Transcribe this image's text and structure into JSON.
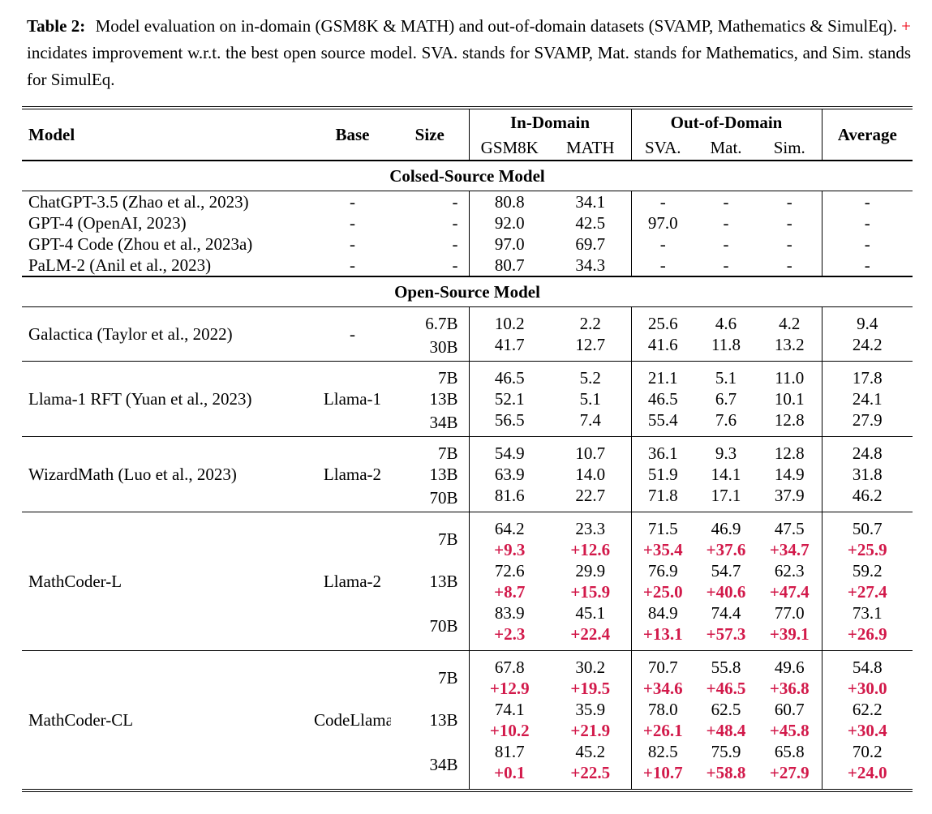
{
  "caption": {
    "label": "Table 2:",
    "before_plus": "Model evaluation on in-domain (GSM8K & MATH) and out-of-domain datasets (SVAMP, Mathematics & SimulEq).",
    "plus": "+",
    "after_plus": "incidates improvement w.r.t. the best open source model. SVA. stands for SVAMP, Mat. stands for Mathematics, and Sim. stands for SimulEq."
  },
  "colors": {
    "delta_red": "#d2194a",
    "caption_plus_red": "#ee0011"
  },
  "table": {
    "header": {
      "model": "Model",
      "base": "Base",
      "size": "Size",
      "in_domain": "In-Domain",
      "out_of_domain": "Out-of-Domain",
      "gsm8k": "GSM8K",
      "math": "MATH",
      "sva": "SVA.",
      "mat": "Mat.",
      "sim": "Sim.",
      "average": "Average"
    },
    "sections": [
      {
        "title": "Colsed-Source Model",
        "group_dividers": false,
        "pad_groups": false,
        "groups": [
          {
            "model": "ChatGPT-3.5 (Zhao et al., 2023)",
            "base": "-",
            "rows": [
              {
                "size": "-",
                "values": [
                  "80.8",
                  "34.1",
                  "-",
                  "-",
                  "-",
                  "-"
                ]
              }
            ]
          },
          {
            "model": "GPT-4 (OpenAI, 2023)",
            "base": "-",
            "rows": [
              {
                "size": "-",
                "values": [
                  "92.0",
                  "42.5",
                  "97.0",
                  "-",
                  "-",
                  "-"
                ]
              }
            ]
          },
          {
            "model": "GPT-4 Code (Zhou et al., 2023a)",
            "base": "-",
            "rows": [
              {
                "size": "-",
                "values": [
                  "97.0",
                  "69.7",
                  "-",
                  "-",
                  "-",
                  "-"
                ]
              }
            ]
          },
          {
            "model": "PaLM-2 (Anil et al., 2023)",
            "base": "-",
            "rows": [
              {
                "size": "-",
                "values": [
                  "80.7",
                  "34.3",
                  "-",
                  "-",
                  "-",
                  "-"
                ]
              }
            ]
          }
        ]
      },
      {
        "title": "Open-Source Model",
        "group_dividers": true,
        "pad_groups": true,
        "groups": [
          {
            "model": "Galactica (Taylor et al., 2022)",
            "base": "-",
            "rows": [
              {
                "size": "6.7B",
                "values": [
                  "10.2",
                  "2.2",
                  "25.6",
                  "4.6",
                  "4.2",
                  "9.4"
                ]
              },
              {
                "size": "30B",
                "values": [
                  "41.7",
                  "12.7",
                  "41.6",
                  "11.8",
                  "13.2",
                  "24.2"
                ]
              }
            ]
          },
          {
            "model": "Llama-1 RFT (Yuan et al., 2023)",
            "base": "Llama-1",
            "rows": [
              {
                "size": "7B",
                "values": [
                  "46.5",
                  "5.2",
                  "21.1",
                  "5.1",
                  "11.0",
                  "17.8"
                ]
              },
              {
                "size": "13B",
                "values": [
                  "52.1",
                  "5.1",
                  "46.5",
                  "6.7",
                  "10.1",
                  "24.1"
                ]
              },
              {
                "size": "34B",
                "values": [
                  "56.5",
                  "7.4",
                  "55.4",
                  "7.6",
                  "12.8",
                  "27.9"
                ]
              }
            ]
          },
          {
            "model": "WizardMath (Luo et al., 2023)",
            "base": "Llama-2",
            "rows": [
              {
                "size": "7B",
                "values": [
                  "54.9",
                  "10.7",
                  "36.1",
                  "9.3",
                  "12.8",
                  "24.8"
                ]
              },
              {
                "size": "13B",
                "values": [
                  "63.9",
                  "14.0",
                  "51.9",
                  "14.1",
                  "14.9",
                  "31.8"
                ]
              },
              {
                "size": "70B",
                "values": [
                  "81.6",
                  "22.7",
                  "71.8",
                  "17.1",
                  "37.9",
                  "46.2"
                ]
              }
            ]
          },
          {
            "model": "MathCoder-L",
            "base": "Llama-2",
            "rows": [
              {
                "size": "7B",
                "values": [
                  "64.2",
                  "23.3",
                  "71.5",
                  "46.9",
                  "47.5",
                  "50.7"
                ],
                "delta": [
                  "+9.3",
                  "+12.6",
                  "+35.4",
                  "+37.6",
                  "+34.7",
                  "+25.9"
                ]
              },
              {
                "size": "13B",
                "values": [
                  "72.6",
                  "29.9",
                  "76.9",
                  "54.7",
                  "62.3",
                  "59.2"
                ],
                "delta": [
                  "+8.7",
                  "+15.9",
                  "+25.0",
                  "+40.6",
                  "+47.4",
                  "+27.4"
                ]
              },
              {
                "size": "70B",
                "values": [
                  "83.9",
                  "45.1",
                  "84.9",
                  "74.4",
                  "77.0",
                  "73.1"
                ],
                "delta": [
                  "+2.3",
                  "+22.4",
                  "+13.1",
                  "+57.3",
                  "+39.1",
                  "+26.9"
                ]
              }
            ]
          },
          {
            "model": "MathCoder-CL",
            "base": "CodeLlama",
            "rows": [
              {
                "size": "7B",
                "values": [
                  "67.8",
                  "30.2",
                  "70.7",
                  "55.8",
                  "49.6",
                  "54.8"
                ],
                "delta": [
                  "+12.9",
                  "+19.5",
                  "+34.6",
                  "+46.5",
                  "+36.8",
                  "+30.0"
                ]
              },
              {
                "size": "13B",
                "values": [
                  "74.1",
                  "35.9",
                  "78.0",
                  "62.5",
                  "60.7",
                  "62.2"
                ],
                "delta": [
                  "+10.2",
                  "+21.9",
                  "+26.1",
                  "+48.4",
                  "+45.8",
                  "+30.4"
                ]
              },
              {
                "size": "34B",
                "values": [
                  "81.7",
                  "45.2",
                  "82.5",
                  "75.9",
                  "65.8",
                  "70.2"
                ],
                "delta": [
                  "+0.1",
                  "+22.5",
                  "+10.7",
                  "+58.8",
                  "+27.9",
                  "+24.0"
                ]
              }
            ]
          }
        ]
      }
    ]
  }
}
